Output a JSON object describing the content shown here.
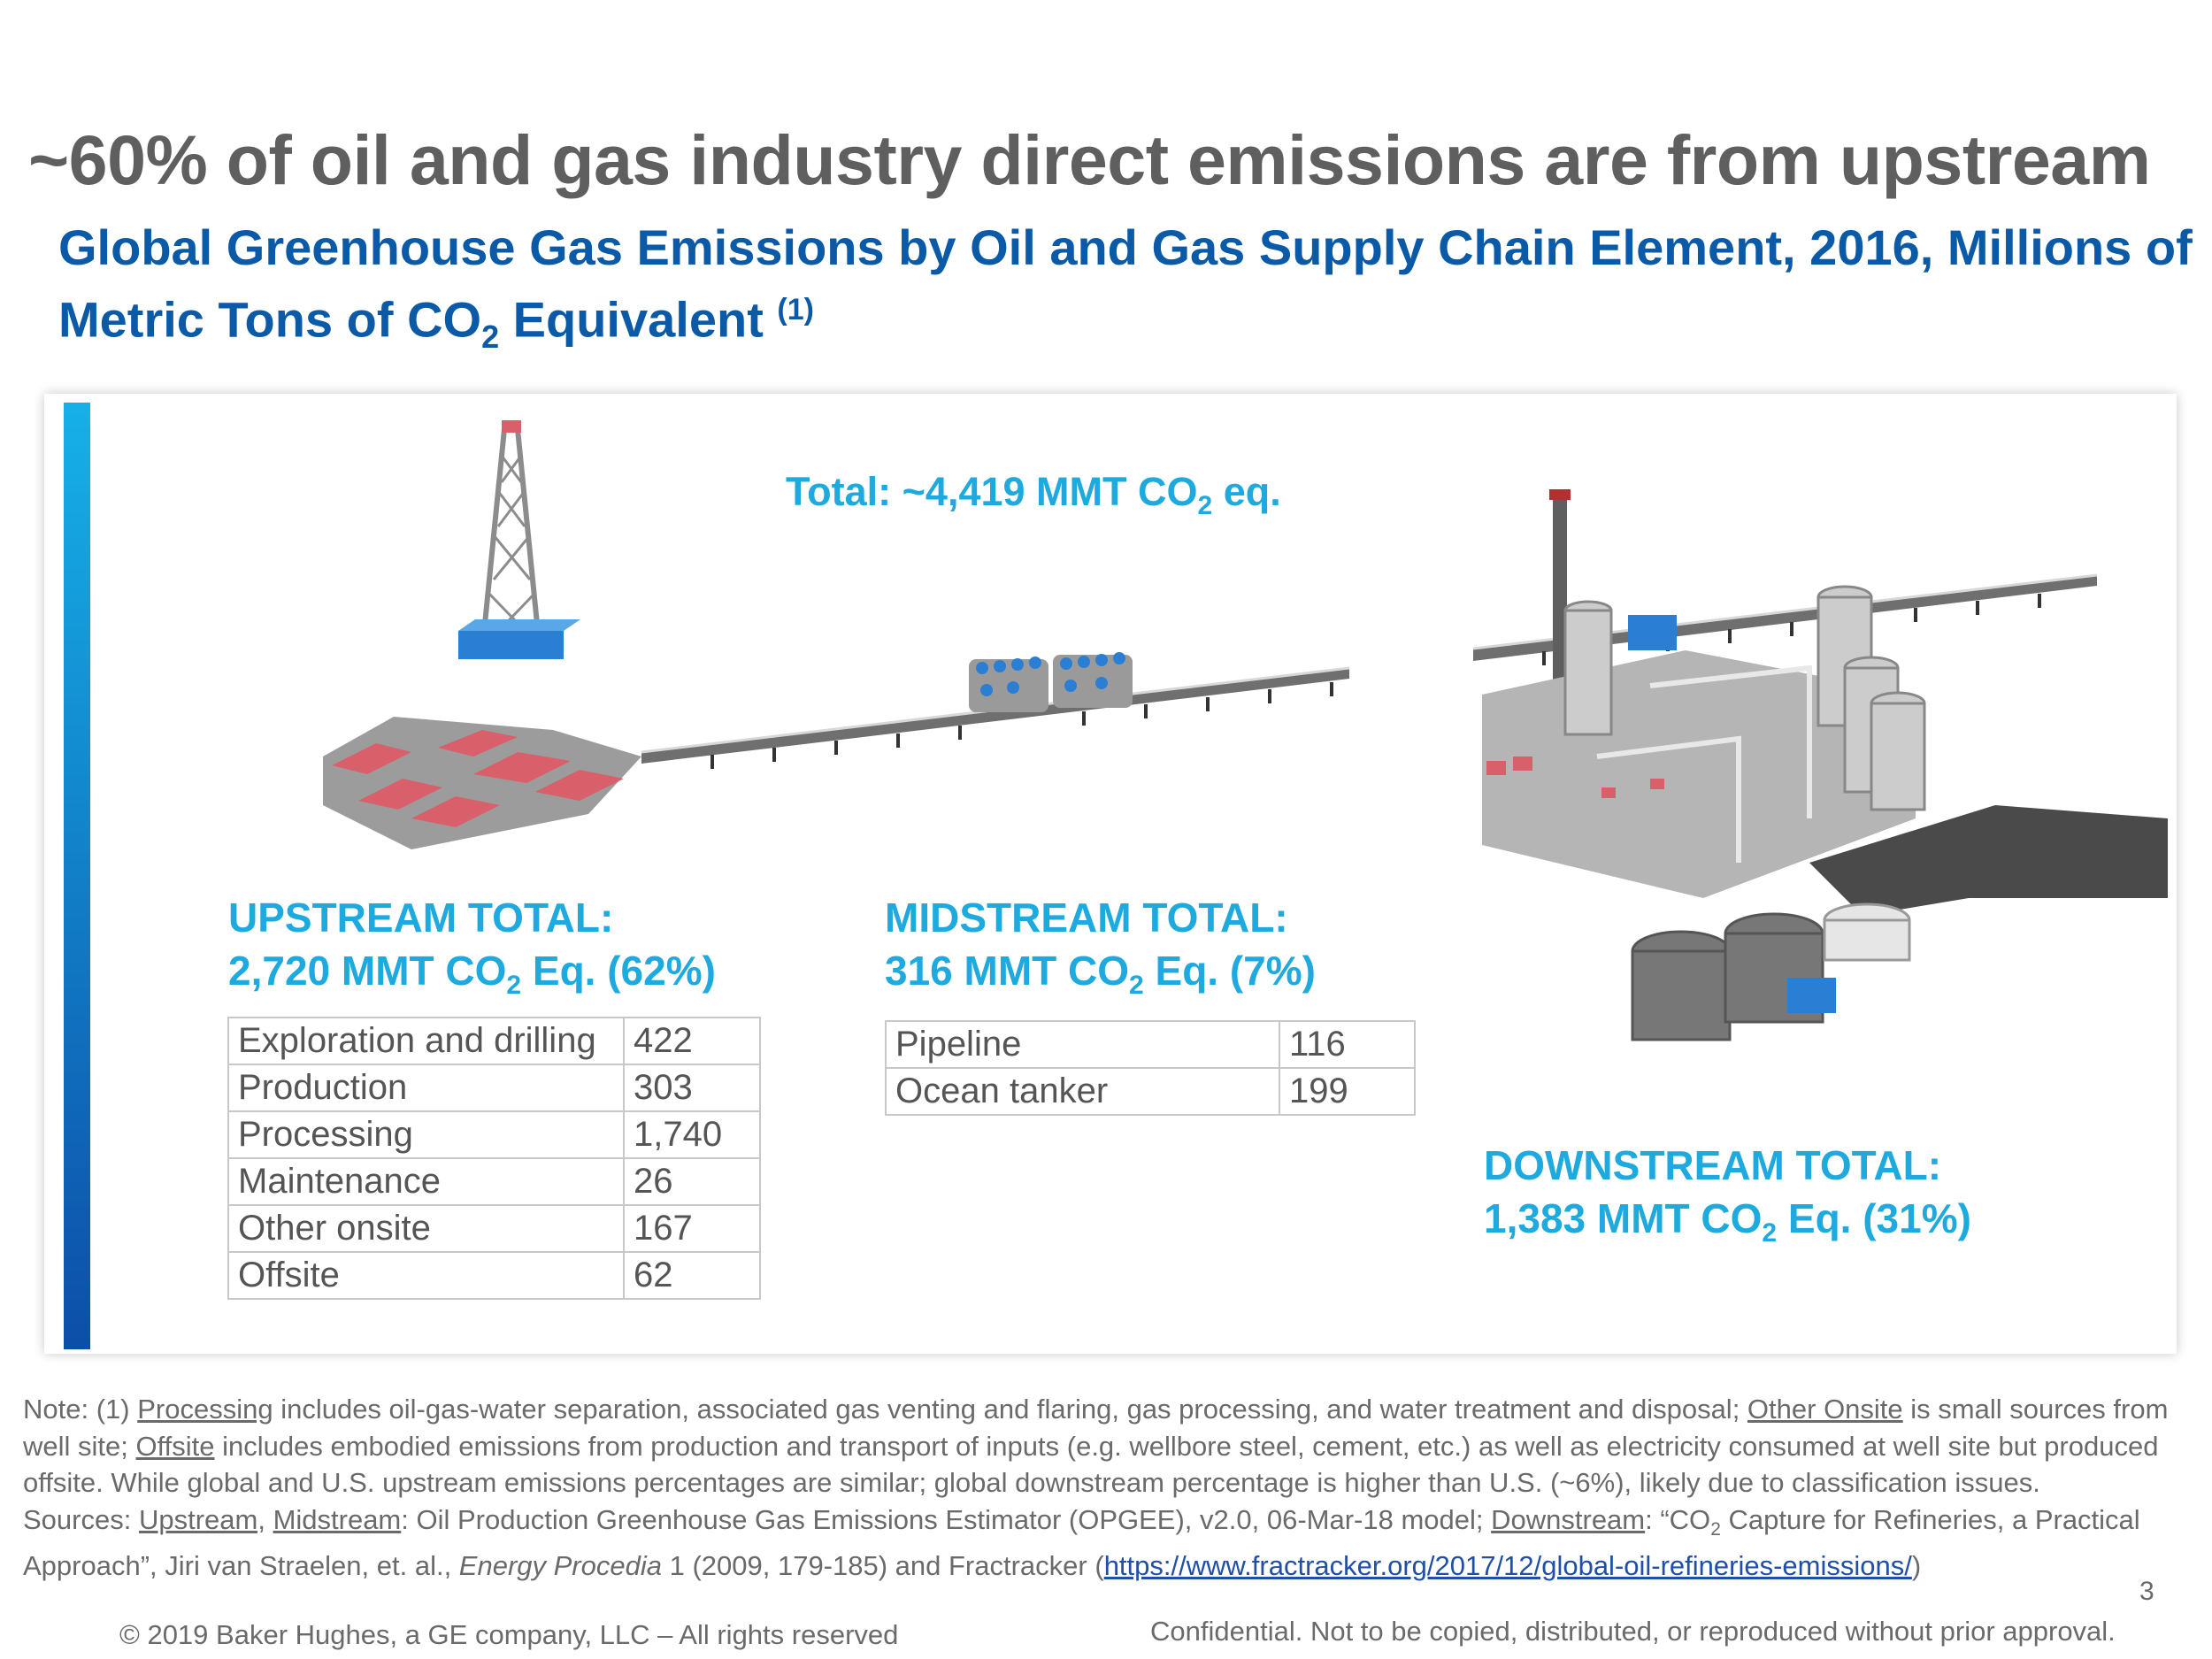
{
  "title": "~60% of oil and gas industry direct emissions are from upstream",
  "subtitle": {
    "part1": "Global Greenhouse Gas Emissions by Oil and Gas Supply Chain Element, 2016, Millions of Metric Tons of CO",
    "sub": "2",
    "part2": " Equivalent ",
    "sup": "(1)"
  },
  "total": {
    "prefix": "Total: ~4,419 MMT CO",
    "sub": "2",
    "suffix": " eq."
  },
  "upstream": {
    "heading": "UPSTREAM TOTAL:",
    "line2_prefix": "2,720  MMT CO",
    "sub": "2",
    "line2_suffix": " Eq. (62%)",
    "rows": [
      [
        "Exploration and drilling",
        "422"
      ],
      [
        "Production",
        "303"
      ],
      [
        "Processing",
        "1,740"
      ],
      [
        "Maintenance",
        "26"
      ],
      [
        "Other onsite",
        "167"
      ],
      [
        "Offsite",
        "62"
      ]
    ]
  },
  "midstream": {
    "heading": "MIDSTREAM TOTAL:",
    "line2_prefix": "316 MMT CO",
    "sub": "2",
    "line2_suffix": " Eq. (7%)",
    "rows": [
      [
        "Pipeline",
        "116"
      ],
      [
        "Ocean tanker",
        "199"
      ]
    ]
  },
  "downstream": {
    "heading": "DOWNSTREAM TOTAL:",
    "line2_prefix": "1,383 MMT CO",
    "sub": "2",
    "line2_suffix": " Eq. (31%)"
  },
  "note": {
    "n1": "Note: (1)  ",
    "u1": "Processing",
    "n2": " includes oil-gas-water separation, associated gas venting and flaring, gas processing, and water treatment and disposal; ",
    "u2": "Other Onsite",
    "n3": " is small sources from well site; ",
    "u3": "Offsite",
    "n4": " includes embodied emissions from production and transport of inputs (e.g. wellbore steel, cement, etc.) as well as electricity consumed at well site but produced offsite. While global and U.S. upstream emissions percentages are similar; global downstream percentage is higher than U.S. (~6%), likely due to classification issues."
  },
  "sources": {
    "s1": "Sources: ",
    "u1": "Upstream,",
    "u2": "Midstream",
    "s2": ": Oil Production Greenhouse Gas Emissions Estimator (OPGEE), v2.0, 06-Mar-18 model; ",
    "u3": "Downstream",
    "s3": ": “CO",
    "sub": "2",
    "s4": " Capture for Refineries, a Practical Approach”, Jiri van Straelen, et. al., ",
    "journal": "Energy Procedia",
    "s5": " 1 (2009, 179-185) and Fractracker (",
    "link": "https://www.fractracker.org/2017/12/global-oil-refineries-emissions/",
    "s6": ")"
  },
  "page_number": "3",
  "copyright": "© 2019 Baker Hughes, a GE company, LLC – All rights reserved",
  "confidential": "Confidential. Not to be copied, distributed, or reproduced without prior approval.",
  "colors": {
    "title_gray": "#5f5f5f",
    "subtitle_blue": "#0b5aa8",
    "accent_cyan": "#1eaadf",
    "rig_red": "#d9606a",
    "equipment_blue": "#2a7fd4"
  }
}
